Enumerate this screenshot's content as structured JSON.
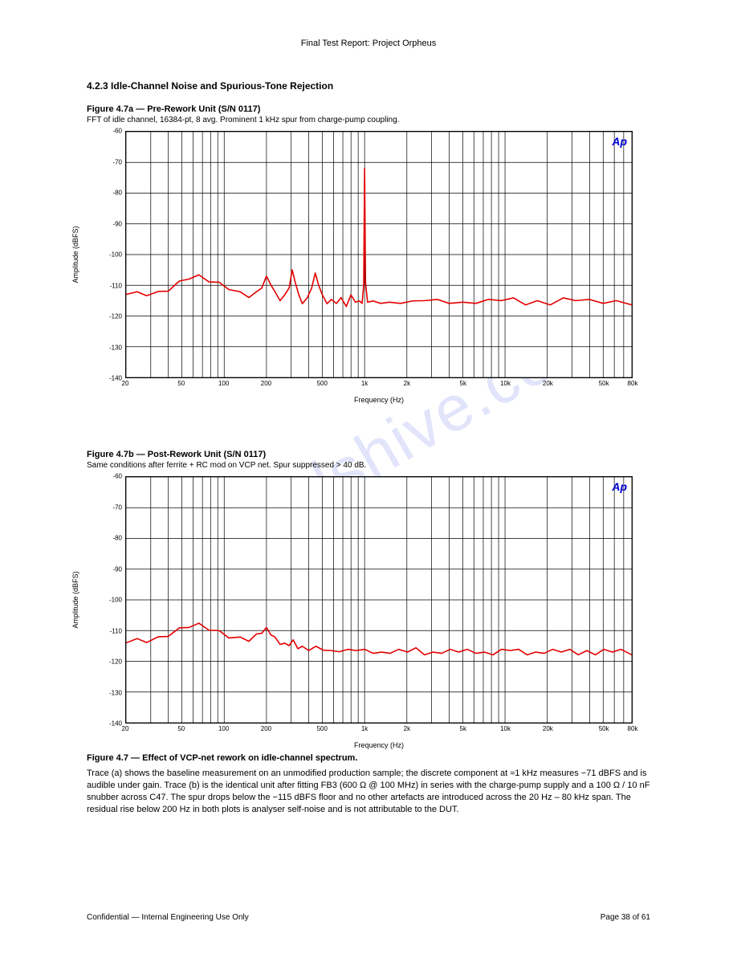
{
  "header": {
    "text": "Final Test Report: Project Orpheus"
  },
  "report_title": "4.2.3   Idle-Channel Noise and Spurious-Tone Rejection",
  "watermark": "manualshive.com",
  "brand_label": "Ap",
  "chart_specs": {
    "line_color": "#e40000",
    "line_width": 1.6,
    "grid_color": "#000000",
    "grid_width": 0.7,
    "background": "#ffffff",
    "brand_color": "#0000d6",
    "x_log": true,
    "xlim": [
      20,
      80000
    ],
    "decades": [
      {
        "start": 20,
        "ticks": [
          20,
          30,
          40,
          50,
          60,
          70,
          80,
          90
        ]
      },
      {
        "start": 100,
        "ticks": [
          100,
          200,
          300,
          400,
          500,
          600,
          700,
          800,
          900
        ]
      },
      {
        "start": 1000,
        "ticks": [
          1000,
          2000,
          3000,
          4000,
          5000,
          6000,
          7000,
          8000,
          9000
        ]
      },
      {
        "start": 10000,
        "ticks": [
          10000,
          20000,
          30000,
          40000,
          50000,
          60000,
          70000,
          80000
        ]
      }
    ],
    "xtick_labels": [
      {
        "v": 20,
        "t": "20"
      },
      {
        "v": 50,
        "t": "50"
      },
      {
        "v": 100,
        "t": "100"
      },
      {
        "v": 200,
        "t": "200"
      },
      {
        "v": 500,
        "t": "500"
      },
      {
        "v": 1000,
        "t": "1k"
      },
      {
        "v": 2000,
        "t": "2k"
      },
      {
        "v": 5000,
        "t": "5k"
      },
      {
        "v": 10000,
        "t": "10k"
      },
      {
        "v": 20000,
        "t": "20k"
      },
      {
        "v": 50000,
        "t": "50k"
      },
      {
        "v": 80000,
        "t": "80k"
      }
    ]
  },
  "figures": [
    {
      "id": "fig-a",
      "title": "Figure 4.7a — Pre-Rework Unit (S/N 0117)",
      "subtitle": "FFT of idle channel, 16384-pt, 8 avg. Prominent 1 kHz spur from charge-pump coupling.",
      "ylim": [
        -140,
        -60
      ],
      "ytick_step": 10,
      "ylabel": "Amplitude (dBFS)",
      "xlabel": "Frequency (Hz)",
      "series": [
        [
          20,
          -113
        ],
        [
          24,
          -113
        ],
        [
          28,
          -112.5
        ],
        [
          34,
          -112
        ],
        [
          40,
          -111
        ],
        [
          48,
          -109.5
        ],
        [
          56,
          -108
        ],
        [
          66,
          -107.5
        ],
        [
          78,
          -108
        ],
        [
          92,
          -109
        ],
        [
          108,
          -110.5
        ],
        [
          130,
          -113
        ],
        [
          150,
          -114
        ],
        [
          170,
          -113
        ],
        [
          185,
          -110
        ],
        [
          200,
          -107
        ],
        [
          215,
          -109
        ],
        [
          230,
          -113
        ],
        [
          250,
          -115
        ],
        [
          270,
          -114
        ],
        [
          290,
          -110
        ],
        [
          305,
          -105
        ],
        [
          320,
          -108
        ],
        [
          340,
          -114
        ],
        [
          360,
          -116
        ],
        [
          390,
          -115
        ],
        [
          420,
          -110
        ],
        [
          445,
          -106
        ],
        [
          470,
          -109
        ],
        [
          500,
          -114
        ],
        [
          540,
          -116
        ],
        [
          580,
          -115.5
        ],
        [
          630,
          -115
        ],
        [
          680,
          -114
        ],
        [
          740,
          -116
        ],
        [
          800,
          -114
        ],
        [
          860,
          -115.5
        ],
        [
          920,
          -116
        ],
        [
          960,
          -115
        ],
        [
          985,
          -110
        ],
        [
          1000,
          -71
        ],
        [
          1015,
          -110
        ],
        [
          1050,
          -115.5
        ],
        [
          1150,
          -116
        ],
        [
          1300,
          -115
        ],
        [
          1500,
          -115.5
        ],
        [
          1800,
          -115
        ],
        [
          2200,
          -116
        ],
        [
          2700,
          -115
        ],
        [
          3300,
          -115.5
        ],
        [
          4000,
          -115
        ],
        [
          5000,
          -115.5
        ],
        [
          6200,
          -115
        ],
        [
          7600,
          -115.5
        ],
        [
          9400,
          -115
        ],
        [
          11500,
          -115
        ],
        [
          14000,
          -115.5
        ],
        [
          17000,
          -115
        ],
        [
          21000,
          -115.5
        ],
        [
          26000,
          -115
        ],
        [
          32000,
          -115
        ],
        [
          40000,
          -115.5
        ],
        [
          50000,
          -115
        ],
        [
          62000,
          -115
        ],
        [
          80000,
          -115.5
        ]
      ]
    },
    {
      "id": "fig-b",
      "title": "Figure 4.7b — Post-Rework Unit (S/N 0117)",
      "subtitle": "Same conditions after ferrite + RC mod on VCP net. Spur suppressed > 40 dB.",
      "ylim": [
        -140,
        -60
      ],
      "ytick_step": 10,
      "ylabel": "Amplitude (dBFS)",
      "xlabel": "Frequency (Hz)",
      "series": [
        [
          20,
          -114
        ],
        [
          24,
          -113.5
        ],
        [
          28,
          -113
        ],
        [
          34,
          -112
        ],
        [
          40,
          -111
        ],
        [
          48,
          -110
        ],
        [
          56,
          -109
        ],
        [
          66,
          -108.5
        ],
        [
          78,
          -109
        ],
        [
          92,
          -110
        ],
        [
          108,
          -111.5
        ],
        [
          130,
          -113
        ],
        [
          150,
          -113.5
        ],
        [
          170,
          -112
        ],
        [
          185,
          -110
        ],
        [
          200,
          -109
        ],
        [
          215,
          -110.5
        ],
        [
          230,
          -113
        ],
        [
          250,
          -114.5
        ],
        [
          270,
          -115
        ],
        [
          290,
          -114
        ],
        [
          310,
          -113
        ],
        [
          335,
          -115
        ],
        [
          360,
          -116
        ],
        [
          400,
          -116.5
        ],
        [
          450,
          -116
        ],
        [
          510,
          -115.5
        ],
        [
          580,
          -116.5
        ],
        [
          660,
          -116
        ],
        [
          760,
          -117
        ],
        [
          870,
          -116.5
        ],
        [
          1000,
          -117
        ],
        [
          1150,
          -116.5
        ],
        [
          1320,
          -117
        ],
        [
          1520,
          -116.5
        ],
        [
          1750,
          -117
        ],
        [
          2020,
          -117
        ],
        [
          2320,
          -116.5
        ],
        [
          2670,
          -117
        ],
        [
          3070,
          -117
        ],
        [
          3540,
          -116.5
        ],
        [
          4070,
          -117
        ],
        [
          4680,
          -117
        ],
        [
          5390,
          -117
        ],
        [
          6200,
          -116.5
        ],
        [
          7130,
          -117
        ],
        [
          8210,
          -117
        ],
        [
          9440,
          -117
        ],
        [
          10860,
          -116.5
        ],
        [
          12500,
          -117
        ],
        [
          14370,
          -117
        ],
        [
          16530,
          -117
        ],
        [
          19010,
          -116.5
        ],
        [
          21870,
          -117
        ],
        [
          25150,
          -117
        ],
        [
          28930,
          -117
        ],
        [
          33270,
          -117
        ],
        [
          38260,
          -116.5
        ],
        [
          44000,
          -117
        ],
        [
          50600,
          -117
        ],
        [
          58190,
          -117
        ],
        [
          66920,
          -117
        ],
        [
          80000,
          -117
        ]
      ]
    }
  ],
  "caption": {
    "title": "Figure 4.7 — Effect of VCP-net rework on idle-channel spectrum.",
    "body": "Trace (a) shows the baseline measurement on an unmodified production sample; the discrete component at ≈1 kHz measures −71 dBFS and is audible under gain. Trace (b) is the identical unit after fitting FB3 (600 Ω @ 100 MHz) in series with the charge-pump supply and a 100 Ω / 10 nF snubber across C47. The spur drops below the −115 dBFS floor and no other artefacts are introduced across the 20 Hz – 80 kHz span. The residual rise below 200 Hz in both plots is analyser self-noise and is not attributable to the DUT."
  },
  "footer": {
    "left": "Confidential — Internal Engineering Use Only",
    "right": "Page 38 of 61"
  }
}
